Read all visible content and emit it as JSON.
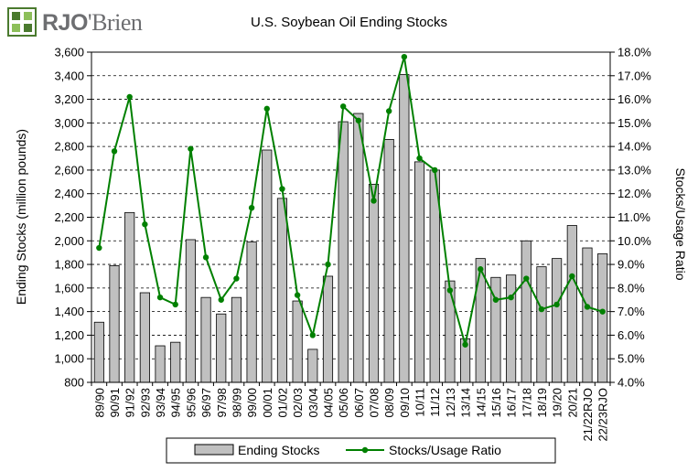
{
  "logo": {
    "brand_a": "RJO",
    "brand_b": "'Brien"
  },
  "chart_data": {
    "type": "bar",
    "title": "U.S. Soybean Oil Ending Stocks",
    "ylabel": "Ending Stocks (million pounds)",
    "y2label": "Stocks/Usage Ratio",
    "ylim": [
      800,
      3600
    ],
    "yticks": [
      "800",
      "1,000",
      "1,200",
      "1,400",
      "1,600",
      "1,800",
      "2,000",
      "2,200",
      "2,400",
      "2,600",
      "2,800",
      "3,000",
      "3,200",
      "3,400",
      "3,600"
    ],
    "y2lim": [
      4.0,
      18.0
    ],
    "y2ticks": [
      "4.0%",
      "5.0%",
      "6.0%",
      "7.0%",
      "8.0%",
      "9.0%",
      "10.0%",
      "11.0%",
      "12.0%",
      "13.0%",
      "14.0%",
      "15.0%",
      "16.0%",
      "17.0%",
      "18.0%"
    ],
    "grid": "horizontal-dashed",
    "legend": "bottom",
    "categories": [
      "89/90",
      "90/91",
      "91/92",
      "92/93",
      "93/94",
      "94/95",
      "95/96",
      "96/97",
      "97/98",
      "98/99",
      "99/00",
      "00/01",
      "01/02",
      "02/03",
      "03/04",
      "04/05",
      "05/06",
      "06/07",
      "07/08",
      "08/09",
      "09/10",
      "10/11",
      "11/12",
      "12/13",
      "13/14",
      "14/15",
      "15/16",
      "16/17",
      "17/18",
      "18/19",
      "19/20",
      "20/21",
      "21/22RJO",
      "22/23RJO"
    ],
    "series": [
      {
        "name": "Ending Stocks",
        "type": "bar",
        "axis": "left",
        "color": "#c0c0c0",
        "values": [
          1310,
          1790,
          2240,
          1560,
          1110,
          1140,
          2010,
          1520,
          1380,
          1520,
          1990,
          2770,
          2360,
          1490,
          1080,
          1700,
          3010,
          3080,
          2480,
          2860,
          3410,
          2670,
          2600,
          1660,
          1170,
          1850,
          1690,
          1710,
          2000,
          1780,
          1850,
          2130,
          1940,
          1890
        ]
      },
      {
        "name": "Stocks/Usage Ratio",
        "type": "line",
        "axis": "right",
        "color": "#008000",
        "values": [
          9.7,
          13.8,
          16.1,
          10.7,
          7.6,
          7.3,
          13.9,
          9.3,
          7.5,
          8.4,
          11.4,
          15.6,
          12.2,
          7.7,
          6.0,
          9.0,
          15.7,
          15.1,
          11.7,
          15.5,
          17.8,
          13.5,
          13.0,
          7.9,
          5.6,
          8.8,
          7.5,
          7.6,
          8.4,
          7.1,
          7.3,
          8.5,
          7.2,
          7.0
        ]
      }
    ]
  }
}
